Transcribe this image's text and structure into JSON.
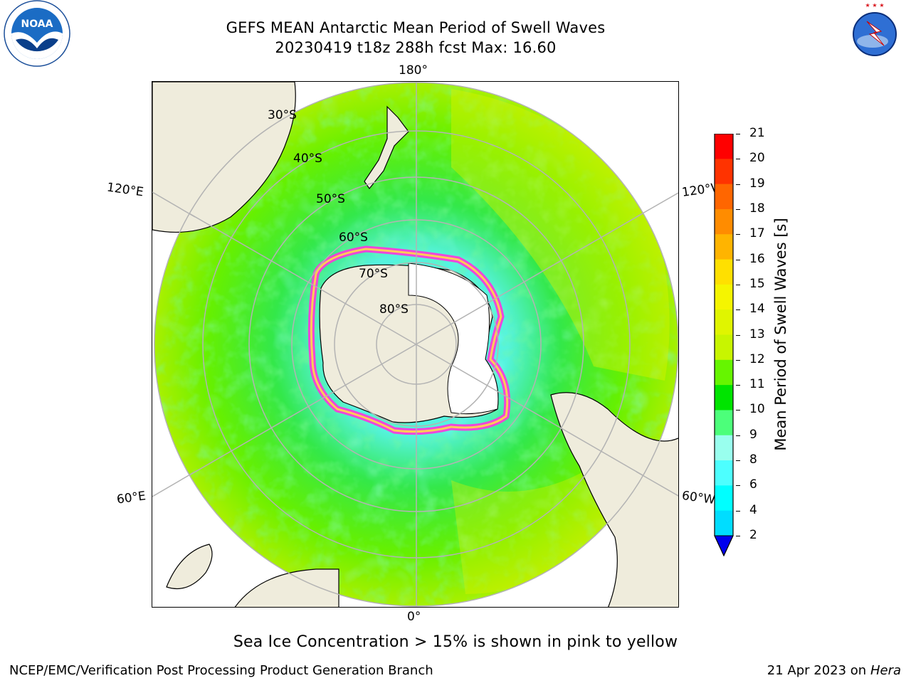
{
  "title": {
    "line1": "GEFS MEAN Antarctic Mean Period of Swell Waves",
    "line2": "20230419 t18z 288h fcst   Max: 16.60"
  },
  "map": {
    "projection": "south-polar-stereographic",
    "longitude_labels": {
      "top": "180°",
      "bottom": "0°",
      "upper_left": "120°E",
      "upper_right": "120°W",
      "lower_left": "60°E",
      "lower_right": "60°W"
    },
    "latitude_labels": [
      "30°S",
      "40°S",
      "50°S",
      "60°S",
      "70°S",
      "80°S"
    ],
    "colors": {
      "land": "#efecdc",
      "coast": "#000000",
      "grid": "#b3b3b3",
      "sea_ice_low": "#ffd84a",
      "sea_ice_high": "#ff33dd"
    }
  },
  "colorbar": {
    "label": "Mean Period of Swell Waves [s]",
    "ticks": [
      "21",
      "20",
      "19",
      "18",
      "17",
      "16",
      "15",
      "14",
      "13",
      "12",
      "11",
      "10",
      "9",
      "8",
      "6",
      "4",
      "2"
    ],
    "colors": [
      "#ff0000",
      "#ff3300",
      "#ff6600",
      "#ff8c00",
      "#ffb400",
      "#ffe000",
      "#f5f500",
      "#e0f500",
      "#c8f500",
      "#66f500",
      "#00e400",
      "#4cff7a",
      "#99ffee",
      "#4dffff",
      "#00ffff",
      "#00ddff",
      "#0077ff"
    ],
    "under_color": "#0000ee"
  },
  "footnote": "Sea Ice Concentration > 15% is shown in pink to yellow",
  "credit": "NCEP/EMC/Verification Post Processing Product Generation Branch",
  "date_prefix": "21 Apr 2023 on ",
  "host": "Hera",
  "logos": {
    "left": "NOAA",
    "right": "NATIONAL WEATHER SERVICE"
  }
}
